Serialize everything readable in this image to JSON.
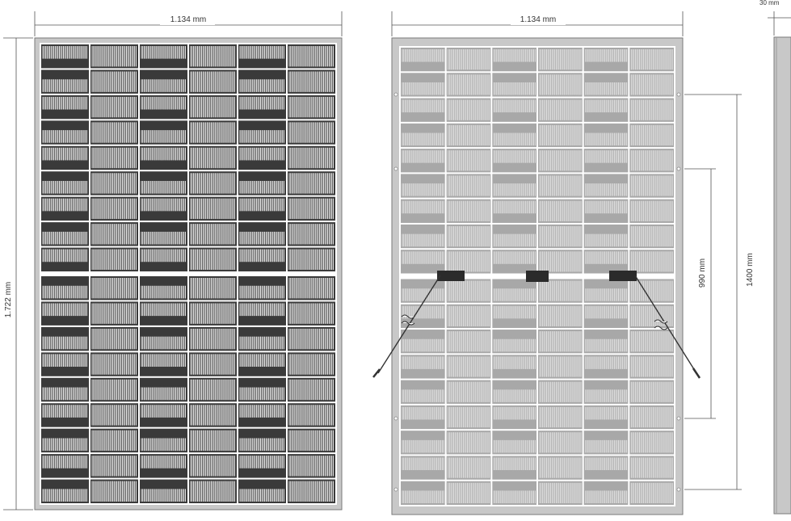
{
  "dimensions": {
    "front_width": "1.134 mm",
    "front_height": "1.722 mm",
    "back_width": "1.134 mm",
    "mount_inner": "990 mm",
    "mount_outer": "1400 mm",
    "frame_depth": "30 mm"
  },
  "views": {
    "front": {
      "name": "front-view",
      "cell_columns": 6,
      "cell_rows_per_half": 9
    },
    "back": {
      "name": "rear-view",
      "cell_columns": 6,
      "cell_rows_per_half": 9,
      "junction_boxes": 3,
      "cables": 2
    }
  },
  "colors": {
    "front_cell": "#3a3a3a",
    "front_busbar": "#ffffff",
    "back_cell": "#a8a8a8",
    "back_busbar": "#e6e6e6",
    "frame": "#c8c8c8",
    "frame_edge": "#7a7a7a",
    "junction_box": "#2b2b2b",
    "dimension_line": "#555555"
  }
}
